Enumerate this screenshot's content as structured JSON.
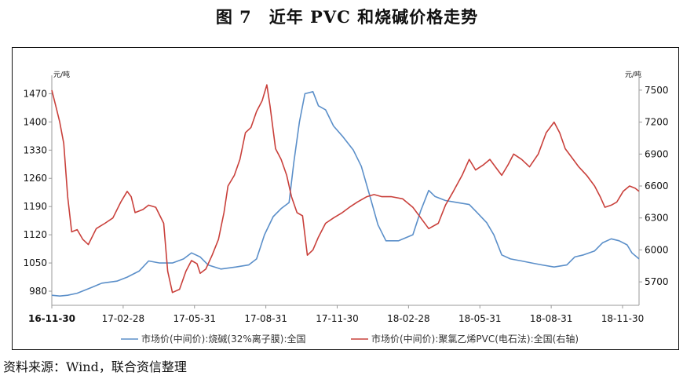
{
  "title": "图 7　近年 PVC 和烧碱价格走势",
  "source": "资料来源：Wind，联合资信整理",
  "colors": {
    "caustic": "#5b8fc9",
    "pvc": "#c9403b",
    "axis": "#999999"
  },
  "chart_data": {
    "type": "line",
    "left_unit": "元/吨",
    "right_unit": "元/吨",
    "left_ylim": [
      945,
      1500
    ],
    "right_ylim": [
      5480,
      7580
    ],
    "left_ticks": [
      980,
      1050,
      1120,
      1190,
      1260,
      1330,
      1400,
      1470
    ],
    "right_ticks": [
      5700,
      6000,
      6300,
      6600,
      6900,
      7200,
      7500
    ],
    "x_ticks": [
      "16-11-30",
      "17-02-28",
      "17-05-31",
      "17-08-31",
      "17-11-30",
      "18-02-28",
      "18-05-31",
      "18-08-31",
      "18-11-30"
    ],
    "x_range": [
      "2016-11-30",
      "2018-12-10"
    ],
    "series": [
      {
        "name": "市场价(中间价):烧碱(32%离子膜):全国",
        "axis": "left",
        "points": [
          [
            "2016-11-30",
            970
          ],
          [
            "2016-12-10",
            968
          ],
          [
            "2016-12-20",
            970
          ],
          [
            "2017-01-01",
            975
          ],
          [
            "2017-01-20",
            990
          ],
          [
            "2017-02-01",
            1000
          ],
          [
            "2017-02-20",
            1005
          ],
          [
            "2017-03-05",
            1015
          ],
          [
            "2017-03-20",
            1030
          ],
          [
            "2017-04-01",
            1055
          ],
          [
            "2017-04-15",
            1050
          ],
          [
            "2017-05-01",
            1050
          ],
          [
            "2017-05-15",
            1060
          ],
          [
            "2017-05-25",
            1075
          ],
          [
            "2017-06-05",
            1065
          ],
          [
            "2017-06-15",
            1045
          ],
          [
            "2017-07-01",
            1035
          ],
          [
            "2017-07-20",
            1040
          ],
          [
            "2017-08-05",
            1045
          ],
          [
            "2017-08-15",
            1060
          ],
          [
            "2017-08-25",
            1120
          ],
          [
            "2017-09-05",
            1165
          ],
          [
            "2017-09-15",
            1185
          ],
          [
            "2017-09-25",
            1200
          ],
          [
            "2017-10-01",
            1300
          ],
          [
            "2017-10-08",
            1400
          ],
          [
            "2017-10-15",
            1470
          ],
          [
            "2017-10-25",
            1475
          ],
          [
            "2017-11-01",
            1440
          ],
          [
            "2017-11-10",
            1430
          ],
          [
            "2017-11-20",
            1390
          ],
          [
            "2017-12-01",
            1365
          ],
          [
            "2017-12-15",
            1330
          ],
          [
            "2017-12-25",
            1290
          ],
          [
            "2018-01-05",
            1215
          ],
          [
            "2018-01-15",
            1145
          ],
          [
            "2018-01-25",
            1105
          ],
          [
            "2018-02-10",
            1105
          ],
          [
            "2018-02-28",
            1120
          ],
          [
            "2018-03-10",
            1180
          ],
          [
            "2018-03-20",
            1230
          ],
          [
            "2018-03-28",
            1215
          ],
          [
            "2018-04-10",
            1205
          ],
          [
            "2018-04-25",
            1200
          ],
          [
            "2018-05-10",
            1195
          ],
          [
            "2018-05-20",
            1175
          ],
          [
            "2018-06-01",
            1150
          ],
          [
            "2018-06-10",
            1120
          ],
          [
            "2018-06-20",
            1070
          ],
          [
            "2018-07-01",
            1060
          ],
          [
            "2018-07-15",
            1055
          ],
          [
            "2018-07-28",
            1050
          ],
          [
            "2018-08-10",
            1045
          ],
          [
            "2018-08-25",
            1040
          ],
          [
            "2018-09-10",
            1045
          ],
          [
            "2018-09-20",
            1065
          ],
          [
            "2018-10-01",
            1070
          ],
          [
            "2018-10-15",
            1080
          ],
          [
            "2018-10-25",
            1100
          ],
          [
            "2018-11-05",
            1110
          ],
          [
            "2018-11-15",
            1105
          ],
          [
            "2018-11-25",
            1095
          ],
          [
            "2018-12-01",
            1075
          ],
          [
            "2018-12-10",
            1060
          ]
        ]
      },
      {
        "name": "市场价(中间价):聚氯乙烯PVC(电石法):全国(右轴)",
        "axis": "right",
        "points": [
          [
            "2016-11-30",
            7500
          ],
          [
            "2016-12-05",
            7350
          ],
          [
            "2016-12-10",
            7200
          ],
          [
            "2016-12-15",
            7000
          ],
          [
            "2016-12-20",
            6500
          ],
          [
            "2016-12-25",
            6170
          ],
          [
            "2017-01-01",
            6190
          ],
          [
            "2017-01-08",
            6100
          ],
          [
            "2017-01-15",
            6050
          ],
          [
            "2017-01-25",
            6200
          ],
          [
            "2017-02-05",
            6250
          ],
          [
            "2017-02-15",
            6300
          ],
          [
            "2017-02-25",
            6450
          ],
          [
            "2017-03-05",
            6550
          ],
          [
            "2017-03-10",
            6500
          ],
          [
            "2017-03-15",
            6350
          ],
          [
            "2017-03-25",
            6380
          ],
          [
            "2017-04-01",
            6420
          ],
          [
            "2017-04-10",
            6400
          ],
          [
            "2017-04-20",
            6250
          ],
          [
            "2017-04-25",
            5800
          ],
          [
            "2017-05-01",
            5600
          ],
          [
            "2017-05-10",
            5630
          ],
          [
            "2017-05-18",
            5800
          ],
          [
            "2017-05-25",
            5900
          ],
          [
            "2017-06-01",
            5870
          ],
          [
            "2017-06-05",
            5780
          ],
          [
            "2017-06-12",
            5820
          ],
          [
            "2017-06-20",
            5950
          ],
          [
            "2017-06-28",
            6100
          ],
          [
            "2017-07-05",
            6350
          ],
          [
            "2017-07-10",
            6600
          ],
          [
            "2017-07-18",
            6700
          ],
          [
            "2017-07-25",
            6850
          ],
          [
            "2017-08-01",
            7100
          ],
          [
            "2017-08-08",
            7150
          ],
          [
            "2017-08-15",
            7300
          ],
          [
            "2017-08-22",
            7400
          ],
          [
            "2017-08-28",
            7550
          ],
          [
            "2017-09-01",
            7350
          ],
          [
            "2017-09-08",
            6950
          ],
          [
            "2017-09-15",
            6850
          ],
          [
            "2017-09-22",
            6700
          ],
          [
            "2017-09-28",
            6500
          ],
          [
            "2017-10-05",
            6350
          ],
          [
            "2017-10-12",
            6320
          ],
          [
            "2017-10-18",
            5950
          ],
          [
            "2017-10-25",
            6000
          ],
          [
            "2017-11-01",
            6120
          ],
          [
            "2017-11-10",
            6250
          ],
          [
            "2017-11-20",
            6300
          ],
          [
            "2017-12-01",
            6350
          ],
          [
            "2017-12-10",
            6400
          ],
          [
            "2017-12-20",
            6450
          ],
          [
            "2018-01-01",
            6500
          ],
          [
            "2018-01-10",
            6520
          ],
          [
            "2018-01-20",
            6500
          ],
          [
            "2018-02-01",
            6500
          ],
          [
            "2018-02-15",
            6480
          ],
          [
            "2018-02-28",
            6400
          ],
          [
            "2018-03-10",
            6300
          ],
          [
            "2018-03-20",
            6200
          ],
          [
            "2018-04-01",
            6250
          ],
          [
            "2018-04-10",
            6420
          ],
          [
            "2018-04-20",
            6550
          ],
          [
            "2018-05-01",
            6700
          ],
          [
            "2018-05-10",
            6850
          ],
          [
            "2018-05-18",
            6750
          ],
          [
            "2018-05-28",
            6800
          ],
          [
            "2018-06-05",
            6850
          ],
          [
            "2018-06-12",
            6780
          ],
          [
            "2018-06-20",
            6700
          ],
          [
            "2018-06-28",
            6800
          ],
          [
            "2018-07-05",
            6900
          ],
          [
            "2018-07-15",
            6850
          ],
          [
            "2018-07-25",
            6780
          ],
          [
            "2018-08-05",
            6900
          ],
          [
            "2018-08-15",
            7100
          ],
          [
            "2018-08-25",
            7200
          ],
          [
            "2018-09-01",
            7100
          ],
          [
            "2018-09-08",
            6950
          ],
          [
            "2018-09-15",
            6880
          ],
          [
            "2018-09-25",
            6780
          ],
          [
            "2018-10-05",
            6700
          ],
          [
            "2018-10-15",
            6600
          ],
          [
            "2018-10-22",
            6500
          ],
          [
            "2018-10-28",
            6400
          ],
          [
            "2018-11-05",
            6420
          ],
          [
            "2018-11-12",
            6450
          ],
          [
            "2018-11-20",
            6550
          ],
          [
            "2018-11-28",
            6600
          ],
          [
            "2018-12-05",
            6580
          ],
          [
            "2018-12-10",
            6550
          ]
        ]
      }
    ]
  }
}
